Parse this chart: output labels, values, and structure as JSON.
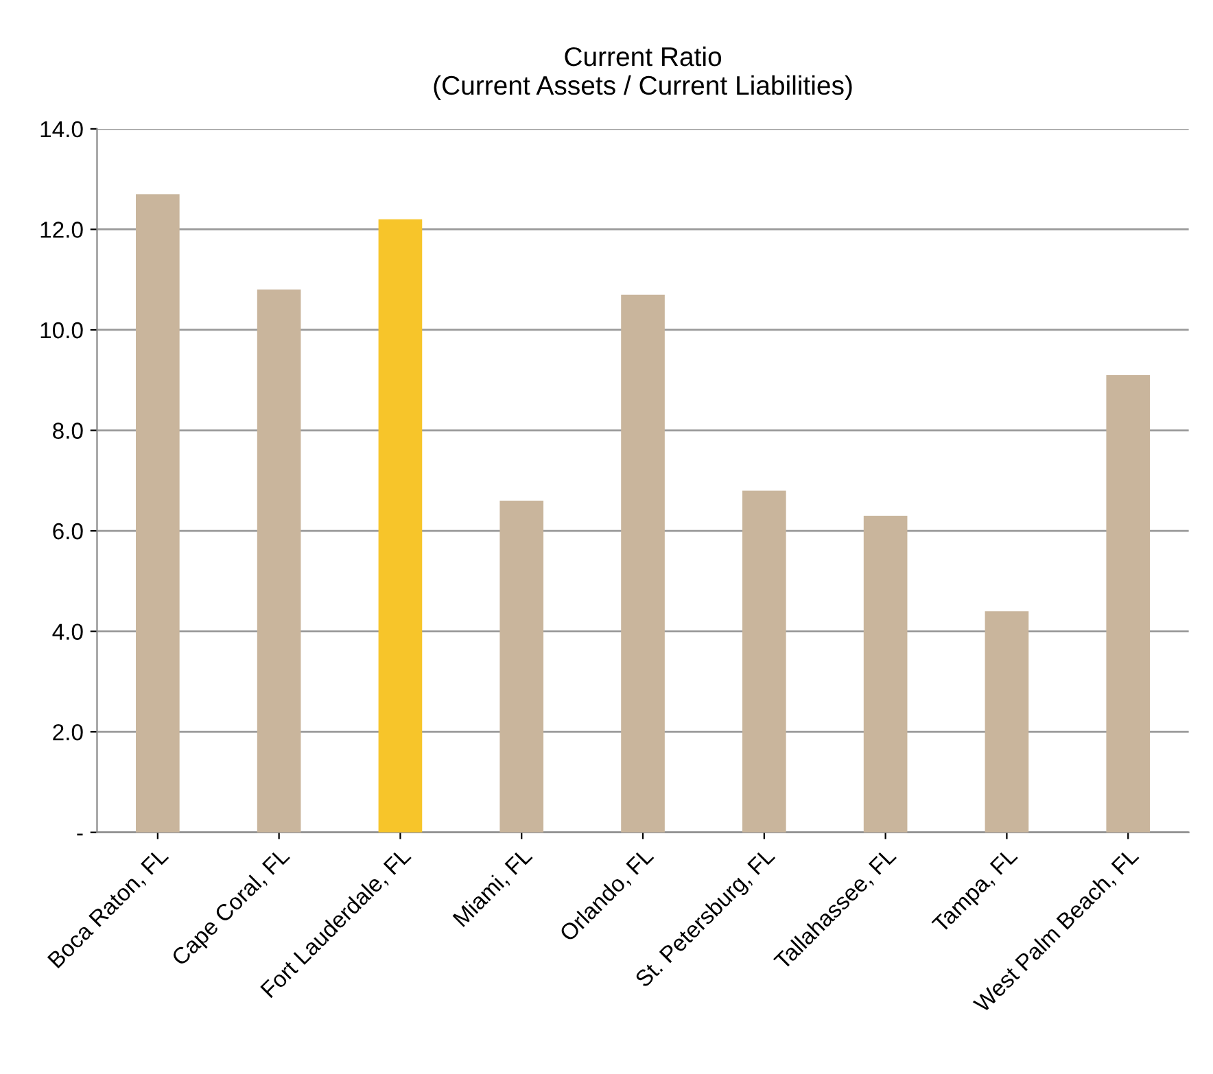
{
  "chart_data": {
    "type": "bar",
    "title": "Current Ratio\n(Current Assets / Current Liabilities)",
    "categories": [
      "Boca Raton, FL",
      "Cape Coral, FL",
      "Fort Lauderdale, FL",
      "Miami, FL",
      "Orlando, FL",
      "St. Petersburg, FL",
      "Tallahassee, FL",
      "Tampa, FL",
      "West Palm Beach, FL"
    ],
    "values": [
      12.7,
      10.8,
      12.2,
      6.6,
      10.7,
      6.8,
      6.3,
      4.4,
      9.1
    ],
    "colors": [
      "#c9b59c",
      "#c9b59c",
      "#f7c52a",
      "#c9b59c",
      "#c9b59c",
      "#c9b59c",
      "#c9b59c",
      "#c9b59c",
      "#c9b59c"
    ],
    "ylim": [
      0,
      14
    ],
    "yticks": [
      {
        "value": 0,
        "label": "-"
      },
      {
        "value": 2,
        "label": "2.0"
      },
      {
        "value": 4,
        "label": "4.0"
      },
      {
        "value": 6,
        "label": "6.0"
      },
      {
        "value": 8,
        "label": "8.0"
      },
      {
        "value": 10,
        "label": "10.0"
      },
      {
        "value": 12,
        "label": "12.0"
      },
      {
        "value": 14,
        "label": "14.0"
      }
    ],
    "grid": "y"
  }
}
